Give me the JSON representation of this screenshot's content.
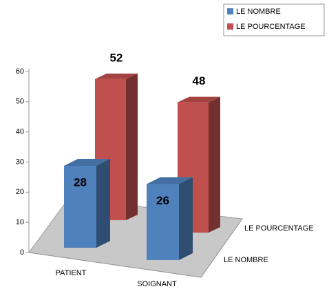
{
  "chart_data": {
    "type": "bar3d",
    "categories": [
      "PATIENT",
      "SOIGNANT"
    ],
    "series": [
      {
        "name": "LE NOMBRE",
        "color": "#4f81bd",
        "values": [
          28,
          26
        ]
      },
      {
        "name": "LE POURCENTAGE",
        "color": "#c0504d",
        "values": [
          52,
          48
        ]
      }
    ],
    "ylim": [
      0,
      60
    ],
    "yticks": [
      0,
      10,
      20,
      30,
      40,
      50,
      60
    ],
    "legend": "top-right"
  }
}
